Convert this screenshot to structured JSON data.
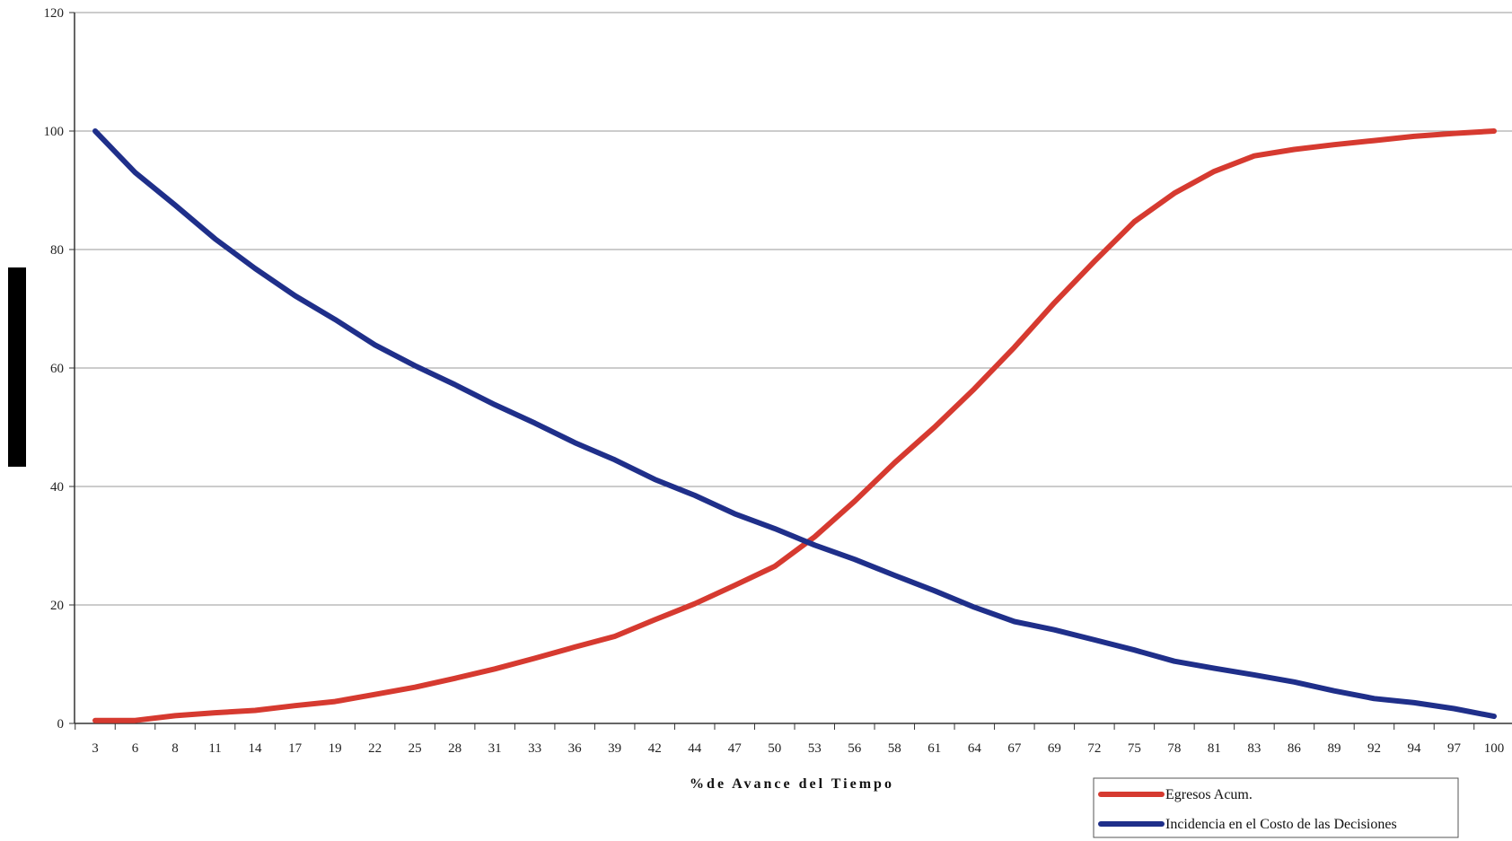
{
  "chart_data": {
    "type": "line",
    "xlabel": "%de Avance del Tiempo",
    "ylabel": "",
    "ylim": [
      0,
      120
    ],
    "yticks": [
      0,
      20,
      40,
      60,
      80,
      100,
      120
    ],
    "grid": true,
    "legend_position": "bottom-right",
    "categories": [
      "3",
      "6",
      "8",
      "11",
      "14",
      "17",
      "19",
      "22",
      "25",
      "28",
      "31",
      "33",
      "36",
      "39",
      "42",
      "44",
      "47",
      "50",
      "53",
      "56",
      "58",
      "61",
      "64",
      "67",
      "69",
      "72",
      "75",
      "78",
      "81",
      "83",
      "86",
      "89",
      "92",
      "94",
      "97",
      "100"
    ],
    "series": [
      {
        "name": "Egresos Acum.",
        "color": "#d63a30",
        "values": [
          0.5,
          0.5,
          1.3,
          1.8,
          2.2,
          3.0,
          3.7,
          4.9,
          6.1,
          7.6,
          9.2,
          11.0,
          12.9,
          14.7,
          17.5,
          20.2,
          23.3,
          26.5,
          31.5,
          37.5,
          44.0,
          50.0,
          56.5,
          63.5,
          71.0,
          78.0,
          84.7,
          89.5,
          93.2,
          95.8,
          96.9,
          97.7,
          98.4,
          99.1,
          99.6,
          100.0
        ]
      },
      {
        "name": "Incidencia en el Costo de las Decisiones",
        "color": "#1f2f8a",
        "values": [
          100.0,
          93.0,
          87.5,
          81.8,
          76.8,
          72.2,
          68.2,
          63.9,
          60.4,
          57.2,
          53.8,
          50.7,
          47.4,
          44.5,
          41.2,
          38.5,
          35.4,
          32.9,
          30.1,
          27.7,
          25.0,
          22.4,
          19.6,
          17.2,
          15.8,
          14.1,
          12.4,
          10.5,
          9.3,
          8.2,
          7.0,
          5.5,
          4.2,
          3.5,
          2.5,
          1.2
        ]
      }
    ]
  }
}
